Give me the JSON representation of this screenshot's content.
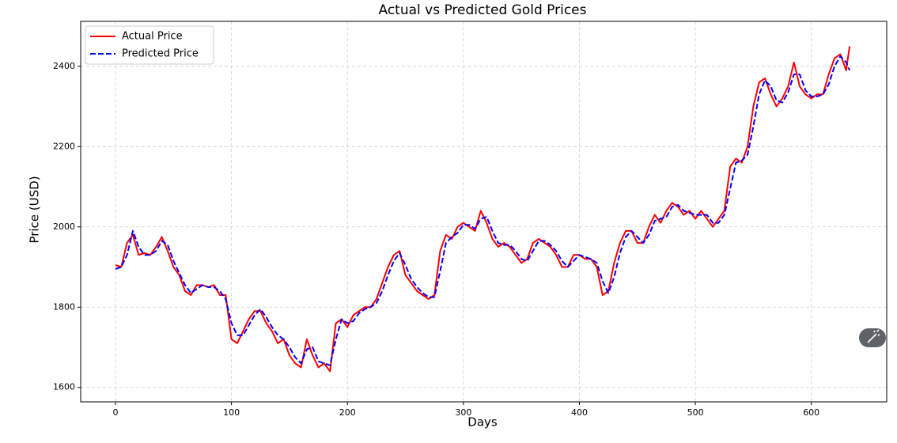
{
  "chart_data": {
    "type": "line",
    "title": "Actual vs Predicted Gold Prices",
    "x_label": "Days",
    "y_label": "Price (USD)",
    "xlim": [
      -30,
      665
    ],
    "ylim": [
      1564,
      2512
    ],
    "xticks": [
      0,
      100,
      200,
      300,
      400,
      500,
      600
    ],
    "yticks": [
      1600,
      1800,
      2000,
      2200,
      2400
    ],
    "grid": true,
    "legend": "upper left",
    "x": [
      0,
      5,
      10,
      15,
      20,
      25,
      30,
      35,
      40,
      45,
      50,
      55,
      60,
      65,
      70,
      75,
      80,
      85,
      90,
      95,
      100,
      105,
      110,
      115,
      120,
      125,
      130,
      135,
      140,
      145,
      150,
      155,
      160,
      165,
      170,
      175,
      180,
      185,
      190,
      195,
      200,
      205,
      210,
      215,
      220,
      225,
      230,
      235,
      240,
      245,
      250,
      255,
      260,
      265,
      270,
      275,
      280,
      285,
      290,
      295,
      300,
      305,
      310,
      315,
      320,
      325,
      330,
      335,
      340,
      345,
      350,
      355,
      360,
      365,
      370,
      375,
      380,
      385,
      390,
      395,
      400,
      405,
      410,
      415,
      420,
      425,
      430,
      435,
      440,
      445,
      450,
      455,
      460,
      465,
      470,
      475,
      480,
      485,
      490,
      495,
      500,
      505,
      510,
      515,
      520,
      525,
      530,
      535,
      540,
      545,
      550,
      555,
      560,
      565,
      570,
      575,
      580,
      585,
      590,
      595,
      600,
      605,
      610,
      615,
      620,
      625,
      630,
      633
    ],
    "series": [
      {
        "name": "Actual Price",
        "color": "#ff0000",
        "linestyle": "solid",
        "values": [
          1905,
          1900,
          1960,
          1980,
          1930,
          1935,
          1930,
          1950,
          1975,
          1940,
          1900,
          1880,
          1840,
          1830,
          1855,
          1855,
          1850,
          1855,
          1830,
          1830,
          1720,
          1710,
          1740,
          1770,
          1790,
          1790,
          1760,
          1740,
          1710,
          1720,
          1680,
          1660,
          1650,
          1720,
          1680,
          1650,
          1660,
          1640,
          1760,
          1770,
          1750,
          1780,
          1790,
          1800,
          1800,
          1820,
          1860,
          1900,
          1930,
          1940,
          1880,
          1860,
          1840,
          1830,
          1820,
          1830,
          1940,
          1980,
          1970,
          2000,
          2010,
          2000,
          1990,
          2040,
          2010,
          1970,
          1950,
          1960,
          1950,
          1930,
          1910,
          1920,
          1960,
          1970,
          1960,
          1950,
          1930,
          1900,
          1900,
          1930,
          1930,
          1920,
          1920,
          1900,
          1830,
          1840,
          1910,
          1960,
          1990,
          1990,
          1960,
          1960,
          2000,
          2030,
          2010,
          2040,
          2060,
          2050,
          2030,
          2040,
          2020,
          2040,
          2020,
          2000,
          2020,
          2040,
          2150,
          2170,
          2160,
          2200,
          2300,
          2360,
          2370,
          2330,
          2300,
          2320,
          2350,
          2410,
          2350,
          2330,
          2320,
          2330,
          2330,
          2380,
          2420,
          2430,
          2390,
          2450
        ]
      },
      {
        "name": "Predicted Price",
        "color": "#0000ff",
        "linestyle": "dashed",
        "values": [
          1895,
          1900,
          1930,
          1990,
          1950,
          1930,
          1930,
          1940,
          1965,
          1955,
          1915,
          1885,
          1855,
          1835,
          1845,
          1855,
          1850,
          1850,
          1840,
          1820,
          1760,
          1730,
          1730,
          1755,
          1780,
          1795,
          1775,
          1750,
          1730,
          1720,
          1700,
          1675,
          1660,
          1695,
          1700,
          1665,
          1660,
          1655,
          1720,
          1770,
          1760,
          1765,
          1785,
          1795,
          1800,
          1810,
          1840,
          1880,
          1915,
          1935,
          1905,
          1870,
          1850,
          1835,
          1825,
          1825,
          1890,
          1960,
          1975,
          1985,
          2005,
          2005,
          1995,
          2020,
          2025,
          1990,
          1960,
          1955,
          1955,
          1940,
          1920,
          1915,
          1940,
          1965,
          1965,
          1955,
          1940,
          1915,
          1900,
          1915,
          1930,
          1925,
          1920,
          1910,
          1865,
          1835,
          1875,
          1935,
          1975,
          1990,
          1975,
          1960,
          1980,
          2015,
          2020,
          2025,
          2050,
          2055,
          2040,
          2035,
          2030,
          2030,
          2030,
          2010,
          2010,
          2030,
          2095,
          2160,
          2165,
          2180,
          2250,
          2330,
          2365,
          2350,
          2315,
          2310,
          2335,
          2380,
          2380,
          2340,
          2325,
          2325,
          2330,
          2355,
          2400,
          2425,
          2410,
          2390
        ]
      }
    ]
  }
}
